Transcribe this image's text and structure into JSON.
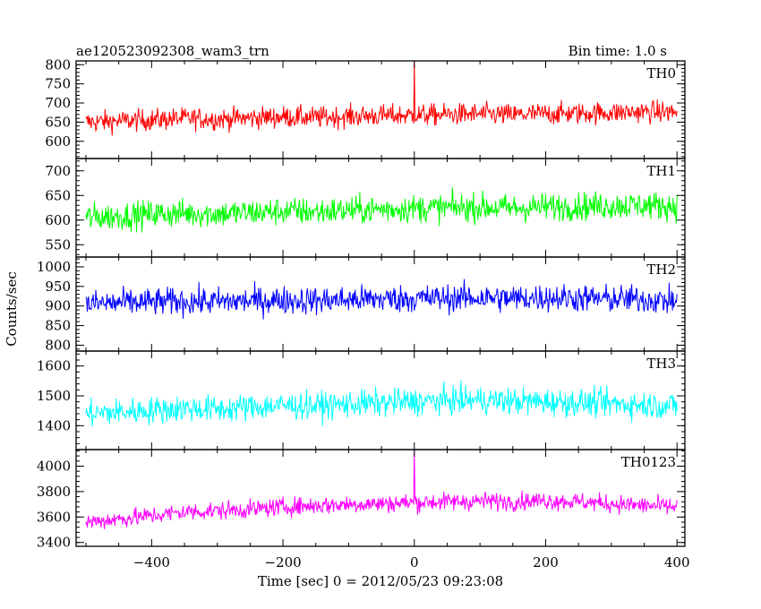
{
  "header": {
    "left_title": "ae120523092308_wam3_trn",
    "right_title": "Bin time: 1.0 s"
  },
  "chart_data": [
    {
      "type": "line",
      "panel_label": "TH0",
      "color": "#ff0000",
      "ylim": [
        555,
        810
      ],
      "y_ticks": [
        600,
        650,
        700,
        750,
        800
      ],
      "x": [
        -500,
        -450,
        -400,
        -350,
        -300,
        -250,
        -200,
        -150,
        -100,
        -50,
        0,
        50,
        100,
        150,
        200,
        250,
        300,
        350,
        400
      ],
      "values": [
        650,
        653,
        656,
        660,
        658,
        661,
        664,
        662,
        665,
        667,
        668,
        670,
        671,
        669,
        672,
        673,
        675,
        677,
        676
      ],
      "noise_amplitude": 28,
      "spikes": [
        {
          "x": 0,
          "y": 810
        }
      ]
    },
    {
      "type": "line",
      "panel_label": "TH1",
      "color": "#00ff00",
      "ylim": [
        525,
        725
      ],
      "y_ticks": [
        550,
        600,
        650,
        700
      ],
      "x": [
        -500,
        -450,
        -400,
        -350,
        -300,
        -250,
        -200,
        -150,
        -100,
        -50,
        0,
        50,
        100,
        150,
        200,
        250,
        300,
        350,
        400
      ],
      "values": [
        605,
        608,
        612,
        614,
        613,
        615,
        618,
        617,
        620,
        622,
        624,
        625,
        626,
        624,
        627,
        628,
        629,
        630,
        628
      ],
      "noise_amplitude": 28,
      "spikes": []
    },
    {
      "type": "line",
      "panel_label": "TH2",
      "color": "#0000ff",
      "ylim": [
        785,
        1025
      ],
      "y_ticks": [
        800,
        850,
        900,
        950,
        1000
      ],
      "x": [
        -500,
        -450,
        -400,
        -350,
        -300,
        -250,
        -200,
        -150,
        -100,
        -50,
        0,
        50,
        100,
        150,
        200,
        250,
        300,
        350,
        400
      ],
      "values": [
        905,
        908,
        910,
        912,
        911,
        913,
        915,
        914,
        916,
        918,
        919,
        920,
        921,
        919,
        922,
        920,
        918,
        917,
        912
      ],
      "noise_amplitude": 35,
      "spikes": []
    },
    {
      "type": "line",
      "panel_label": "TH3",
      "color": "#00ffff",
      "ylim": [
        1320,
        1650
      ],
      "y_ticks": [
        1400,
        1500,
        1600
      ],
      "x": [
        -500,
        -450,
        -400,
        -350,
        -300,
        -250,
        -200,
        -150,
        -100,
        -50,
        0,
        50,
        100,
        150,
        200,
        250,
        300,
        350,
        400
      ],
      "values": [
        1440,
        1445,
        1452,
        1458,
        1455,
        1462,
        1468,
        1466,
        1472,
        1476,
        1480,
        1484,
        1486,
        1482,
        1480,
        1478,
        1474,
        1470,
        1466
      ],
      "noise_amplitude": 45,
      "spikes": []
    },
    {
      "type": "line",
      "panel_label": "TH0123",
      "color": "#ff00ff",
      "ylim": [
        3370,
        4130
      ],
      "y_ticks": [
        3400,
        3600,
        3800,
        4000
      ],
      "x": [
        -500,
        -450,
        -400,
        -350,
        -300,
        -250,
        -200,
        -150,
        -100,
        -50,
        0,
        50,
        100,
        150,
        200,
        250,
        300,
        350,
        400
      ],
      "values": [
        3560,
        3585,
        3610,
        3640,
        3650,
        3660,
        3680,
        3690,
        3700,
        3705,
        3715,
        3720,
        3725,
        3722,
        3730,
        3720,
        3705,
        3690,
        3680
      ],
      "noise_amplitude": 70,
      "spikes": [
        {
          "x": 0,
          "y": 4130
        }
      ]
    }
  ],
  "x_axis": {
    "xlim": [
      -515,
      412
    ],
    "ticks": [
      -400,
      -200,
      0,
      200,
      400
    ],
    "tick_labels": [
      "−400",
      "−200",
      "0",
      "200",
      "400"
    ],
    "xlabel": "Time [sec] 0 = 2012/05/23 09:23:08",
    "x_start": -500,
    "x_end": 400
  },
  "y_axis": {
    "ylabel": "Counts/sec"
  }
}
